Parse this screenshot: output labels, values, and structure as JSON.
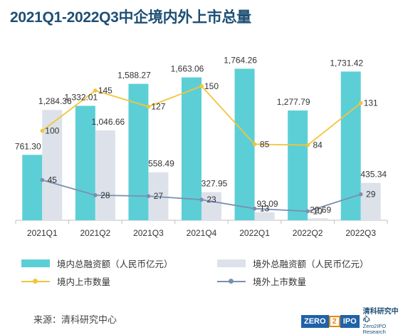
{
  "title": "2021Q1-2022Q3中企境内外上市总量",
  "source": "来源：清科研究中心",
  "logo": {
    "zero": "ZERO",
    "two": "2",
    "ipo": "IPO",
    "cn": "清科研究中心",
    "en": "Zero2IPO Research"
  },
  "colors": {
    "domestic_bar": "#5ccfd6",
    "overseas_bar": "#dde2ea",
    "domestic_line": "#f2c53a",
    "overseas_line": "#7b8fb0",
    "title": "#1e4f74"
  },
  "legend": [
    {
      "label": "境内总融资额（人民币亿元）",
      "kind": "bar",
      "color": "#5ccfd6"
    },
    {
      "label": "境外总融资额（人民币亿元）",
      "kind": "bar",
      "color": "#dde2ea"
    },
    {
      "label": "境内上市数量",
      "kind": "line",
      "color": "#f2c53a"
    },
    {
      "label": "境外上市数量",
      "kind": "line",
      "color": "#7b8fb0"
    }
  ],
  "chart_data": {
    "type": "bar",
    "title": "2021Q1-2022Q3中企境内外上市总量",
    "categories": [
      "2021Q1",
      "2021Q2",
      "2021Q3",
      "2021Q4",
      "2022Q1",
      "2022Q2",
      "2022Q3"
    ],
    "bar_series": [
      {
        "name": "境内总融资额（人民币亿元）",
        "values": [
          761.3,
          1332.01,
          1588.27,
          1663.06,
          1764.26,
          1277.79,
          1731.42
        ],
        "labels": [
          "761.30",
          "1,332.01",
          "1,588.27",
          "1,663.06",
          "1,764.26",
          "1,277.79",
          "1,731.42"
        ]
      },
      {
        "name": "境外总融资额（人民币亿元）",
        "values": [
          1284.36,
          1046.66,
          558.49,
          327.95,
          93.09,
          22.69,
          435.34
        ],
        "labels": [
          "1,284.36",
          "1,046.66",
          "558.49",
          "327.95",
          "93.09",
          "22.69",
          "435.34"
        ]
      }
    ],
    "line_series": [
      {
        "name": "境内上市数量",
        "values": [
          100,
          145,
          127,
          150,
          85,
          84,
          131
        ]
      },
      {
        "name": "境外上市数量",
        "values": [
          45,
          28,
          27,
          23,
          13,
          10,
          29
        ]
      }
    ],
    "bar_ylim": [
      0,
      2000
    ],
    "line_ylim": [
      0,
      200
    ],
    "grid": false,
    "legend_position": "bottom"
  }
}
